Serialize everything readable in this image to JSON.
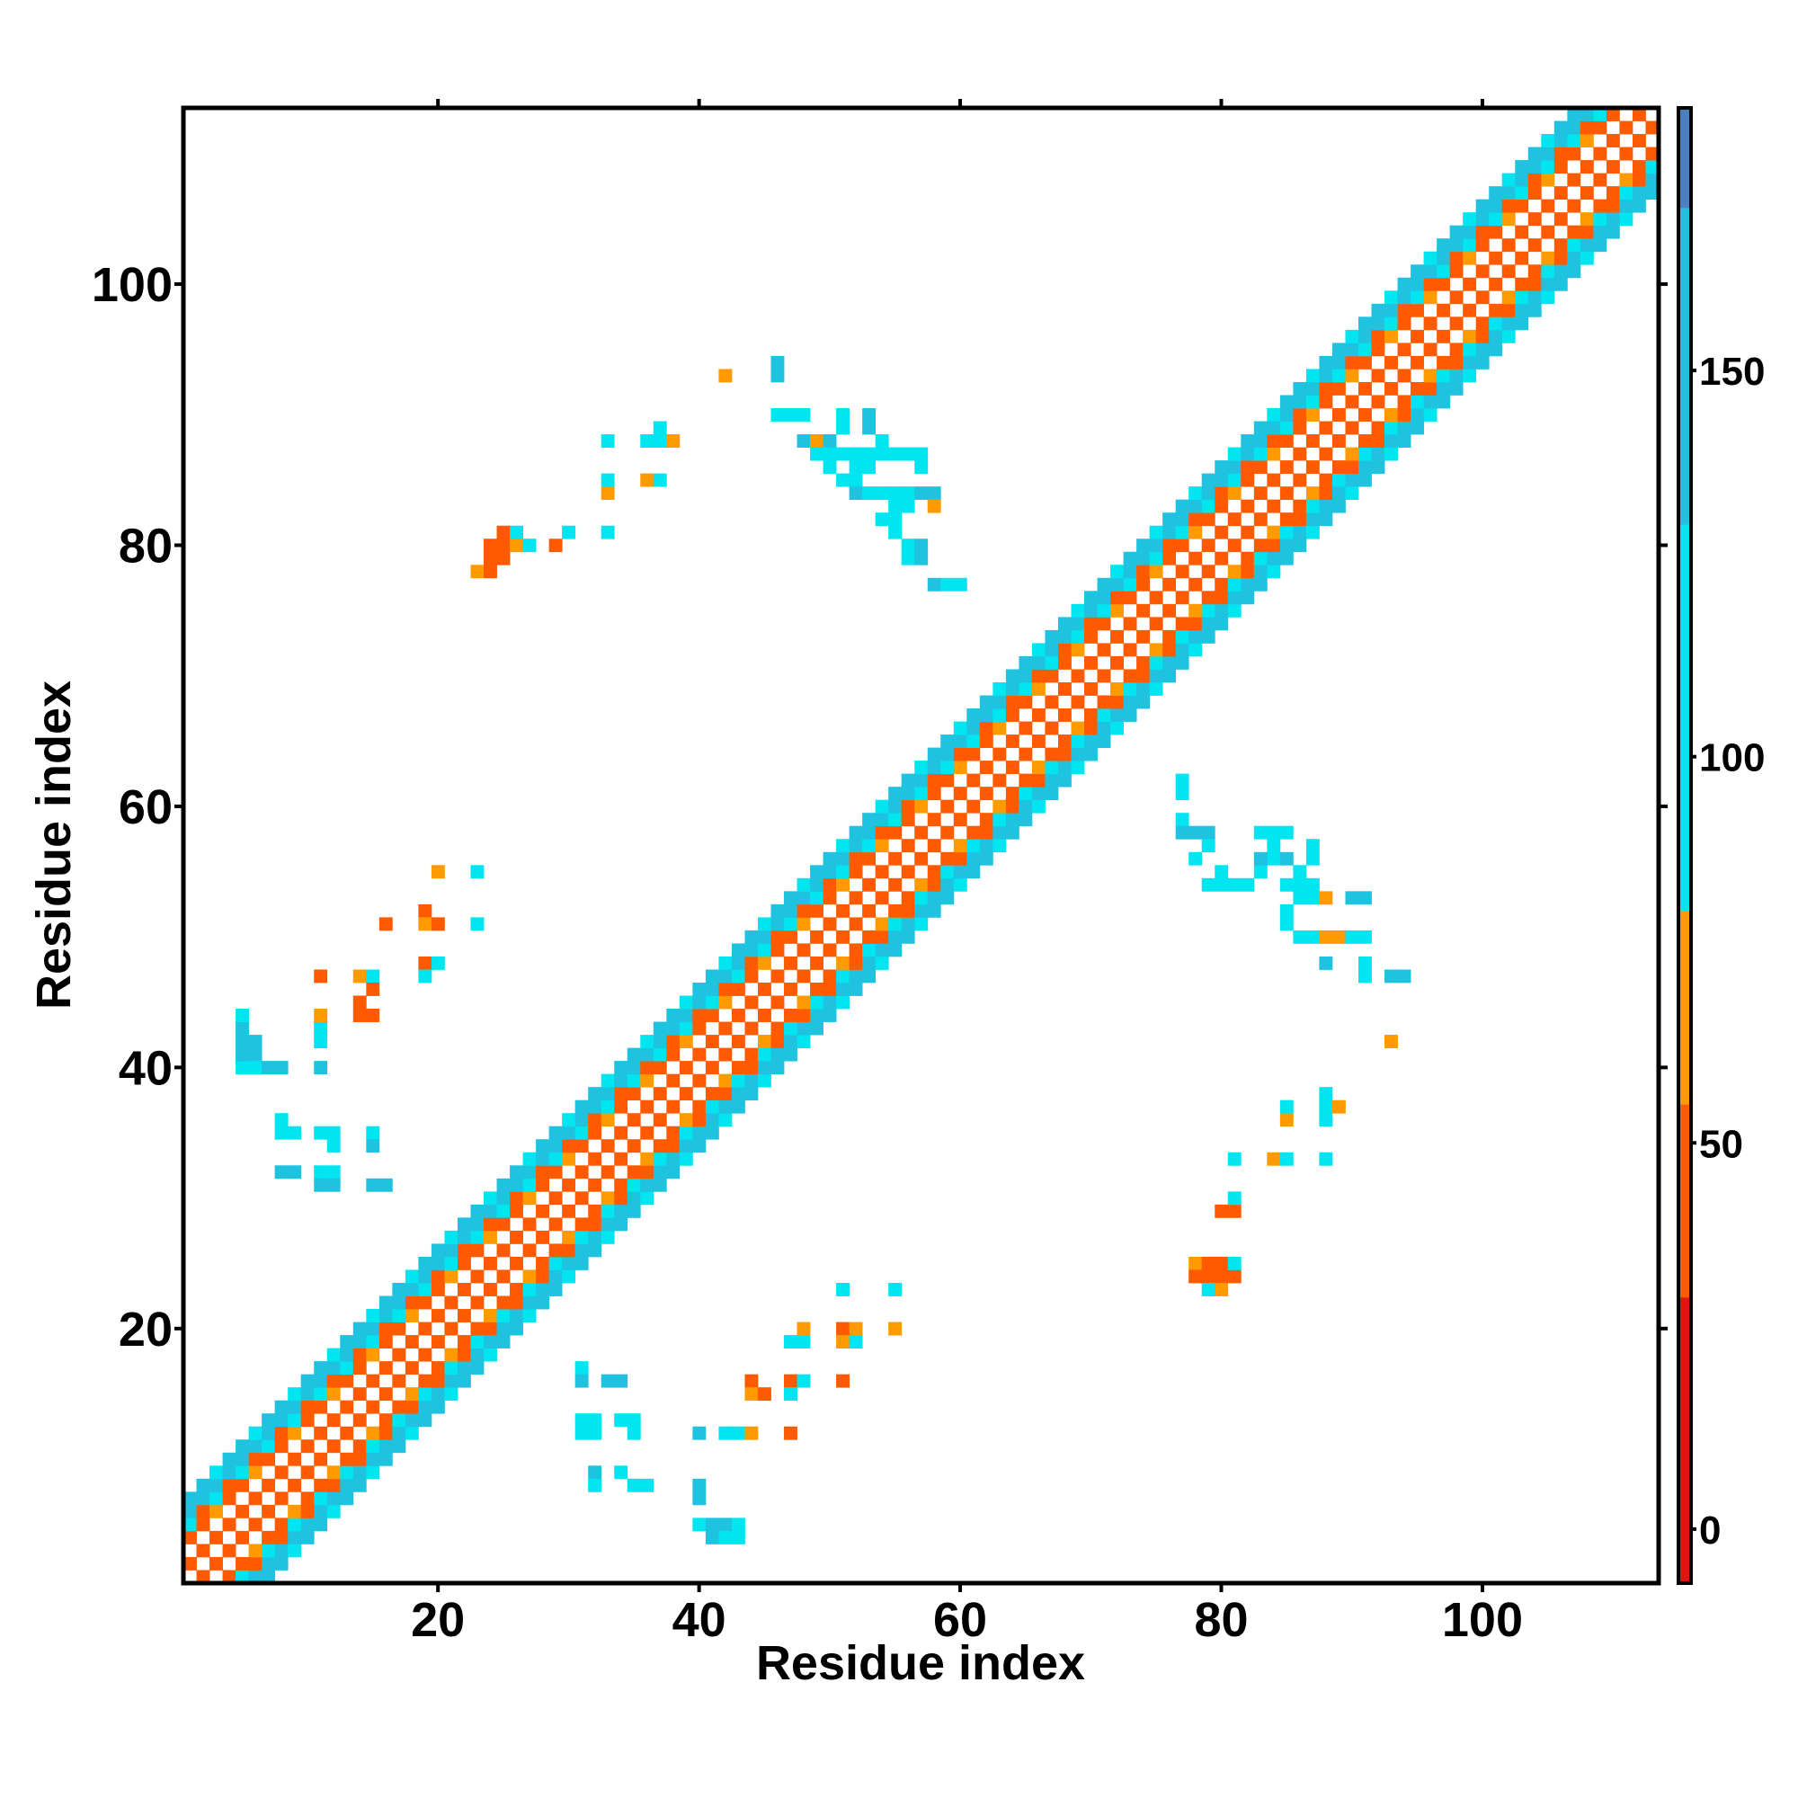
{
  "chart_data": {
    "type": "heatmap",
    "title": "",
    "xlabel": "Residue index",
    "ylabel": "Residue index",
    "xlim": [
      0.5,
      113.5
    ],
    "ylim": [
      0.5,
      113.5
    ],
    "x_ticks": [
      20,
      40,
      60,
      80,
      100
    ],
    "y_ticks": [
      20,
      40,
      60,
      80,
      100
    ],
    "colorbar": {
      "range": [
        -7,
        184
      ],
      "ticks": [
        0,
        50,
        100,
        150
      ],
      "bands": [
        {
          "from": -7,
          "to": 30,
          "color": "#e81010"
        },
        {
          "from": 30,
          "to": 55,
          "color": "#ff5a00"
        },
        {
          "from": 55,
          "to": 80,
          "color": "#ff9a00"
        },
        {
          "from": 80,
          "to": 130,
          "color": "#00e5f0"
        },
        {
          "from": 130,
          "to": 171,
          "color": "#1fc3e0"
        },
        {
          "from": 171,
          "to": 184,
          "color": "#4a7fc0"
        }
      ]
    },
    "diagonal_band": {
      "from": 1,
      "to": 113,
      "half_width": 6
    },
    "off_diagonal_cells": [
      [
        23,
        78,
        60
      ],
      [
        24,
        78,
        45
      ],
      [
        24,
        79,
        45
      ],
      [
        25,
        79,
        45
      ],
      [
        24,
        80,
        45
      ],
      [
        25,
        80,
        45
      ],
      [
        25,
        81,
        45
      ],
      [
        26,
        80,
        60
      ],
      [
        26,
        81,
        100
      ],
      [
        27,
        80,
        100
      ],
      [
        29,
        80,
        45
      ],
      [
        30,
        81,
        100
      ],
      [
        33,
        81,
        100
      ],
      [
        33,
        84,
        60
      ],
      [
        33,
        85,
        100
      ],
      [
        36,
        85,
        60
      ],
      [
        37,
        85,
        100
      ],
      [
        33,
        88,
        100
      ],
      [
        36,
        88,
        100
      ],
      [
        37,
        88,
        100
      ],
      [
        37,
        89,
        100
      ],
      [
        38,
        88,
        60
      ],
      [
        42,
        93,
        60
      ],
      [
        46,
        93,
        150
      ],
      [
        46,
        94,
        150
      ],
      [
        46,
        90,
        100
      ],
      [
        47,
        90,
        100
      ],
      [
        48,
        90,
        100
      ],
      [
        48,
        88,
        150
      ],
      [
        49,
        88,
        60
      ],
      [
        50,
        88,
        150
      ],
      [
        49,
        87,
        100
      ],
      [
        50,
        87,
        100
      ],
      [
        51,
        87,
        100
      ],
      [
        52,
        87,
        100
      ],
      [
        50,
        86,
        100
      ],
      [
        51,
        85,
        100
      ],
      [
        52,
        85,
        100
      ],
      [
        52,
        86,
        100
      ],
      [
        53,
        86,
        100
      ],
      [
        53,
        87,
        100
      ],
      [
        54,
        87,
        100
      ],
      [
        55,
        87,
        100
      ],
      [
        56,
        87,
        100
      ],
      [
        57,
        87,
        100
      ],
      [
        57,
        86,
        100
      ],
      [
        54,
        84,
        100
      ],
      [
        55,
        84,
        100
      ],
      [
        56,
        84,
        100
      ],
      [
        57,
        84,
        150
      ],
      [
        58,
        84,
        150
      ],
      [
        58,
        83,
        60
      ],
      [
        55,
        83,
        100
      ],
      [
        56,
        83,
        100
      ],
      [
        54,
        82,
        100
      ],
      [
        55,
        82,
        100
      ],
      [
        55,
        81,
        100
      ],
      [
        56,
        80,
        100
      ],
      [
        56,
        79,
        100
      ],
      [
        57,
        80,
        150
      ],
      [
        57,
        79,
        150
      ],
      [
        58,
        77,
        150
      ],
      [
        59,
        77,
        100
      ],
      [
        60,
        77,
        100
      ],
      [
        51,
        90,
        100
      ],
      [
        51,
        89,
        100
      ],
      [
        53,
        90,
        150
      ],
      [
        53,
        89,
        150
      ],
      [
        54,
        88,
        100
      ],
      [
        52,
        84,
        150
      ],
      [
        53,
        84,
        100
      ],
      [
        78,
        25,
        60
      ],
      [
        78,
        24,
        45
      ],
      [
        79,
        24,
        45
      ],
      [
        79,
        25,
        45
      ],
      [
        80,
        25,
        45
      ],
      [
        80,
        24,
        45
      ],
      [
        81,
        24,
        45
      ],
      [
        81,
        25,
        100
      ],
      [
        80,
        23,
        60
      ],
      [
        79,
        23,
        100
      ],
      [
        80,
        29,
        45
      ],
      [
        81,
        29,
        45
      ],
      [
        81,
        30,
        100
      ],
      [
        81,
        33,
        100
      ],
      [
        84,
        33,
        60
      ],
      [
        85,
        33,
        100
      ],
      [
        85,
        36,
        60
      ],
      [
        85,
        37,
        100
      ],
      [
        88,
        33,
        100
      ],
      [
        88,
        36,
        100
      ],
      [
        88,
        37,
        100
      ],
      [
        89,
        37,
        60
      ],
      [
        88,
        38,
        100
      ],
      [
        93,
        42,
        60
      ],
      [
        77,
        62,
        100
      ],
      [
        77,
        61,
        100
      ],
      [
        77,
        59,
        100
      ],
      [
        77,
        58,
        150
      ],
      [
        78,
        58,
        150
      ],
      [
        79,
        58,
        150
      ],
      [
        78,
        56,
        100
      ],
      [
        79,
        57,
        100
      ],
      [
        83,
        58,
        100
      ],
      [
        84,
        58,
        100
      ],
      [
        85,
        58,
        100
      ],
      [
        84,
        57,
        100
      ],
      [
        84,
        56,
        100
      ],
      [
        83,
        55,
        100
      ],
      [
        82,
        54,
        100
      ],
      [
        81,
        54,
        100
      ],
      [
        80,
        54,
        100
      ],
      [
        79,
        54,
        100
      ],
      [
        80,
        55,
        100
      ],
      [
        85,
        54,
        100
      ],
      [
        86,
        54,
        100
      ],
      [
        86,
        53,
        100
      ],
      [
        87,
        54,
        100
      ],
      [
        87,
        53,
        100
      ],
      [
        87,
        57,
        100
      ],
      [
        87,
        56,
        100
      ],
      [
        88,
        53,
        60
      ],
      [
        90,
        53,
        150
      ],
      [
        91,
        53,
        150
      ],
      [
        85,
        52,
        100
      ],
      [
        85,
        51,
        100
      ],
      [
        86,
        50,
        100
      ],
      [
        87,
        50,
        100
      ],
      [
        88,
        50,
        60
      ],
      [
        89,
        50,
        60
      ],
      [
        90,
        50,
        100
      ],
      [
        91,
        50,
        100
      ],
      [
        88,
        48,
        150
      ],
      [
        91,
        48,
        100
      ],
      [
        91,
        47,
        100
      ],
      [
        93,
        47,
        150
      ],
      [
        94,
        47,
        150
      ],
      [
        85,
        56,
        150
      ],
      [
        83,
        56,
        150
      ],
      [
        86,
        55,
        100
      ],
      [
        5,
        40,
        100
      ],
      [
        5,
        41,
        150
      ],
      [
        6,
        41,
        150
      ],
      [
        5,
        42,
        150
      ],
      [
        6,
        42,
        150
      ],
      [
        5,
        43,
        150
      ],
      [
        5,
        44,
        100
      ],
      [
        6,
        40,
        100
      ],
      [
        7,
        40,
        150
      ],
      [
        8,
        40,
        150
      ],
      [
        11,
        40,
        150
      ],
      [
        8,
        36,
        100
      ],
      [
        8,
        35,
        100
      ],
      [
        9,
        35,
        100
      ],
      [
        11,
        35,
        100
      ],
      [
        12,
        34,
        100
      ],
      [
        12,
        35,
        100
      ],
      [
        15,
        35,
        100
      ],
      [
        15,
        34,
        150
      ],
      [
        8,
        32,
        150
      ],
      [
        9,
        32,
        150
      ],
      [
        11,
        32,
        100
      ],
      [
        12,
        32,
        100
      ],
      [
        11,
        31,
        150
      ],
      [
        12,
        31,
        150
      ],
      [
        15,
        31,
        150
      ],
      [
        16,
        31,
        150
      ],
      [
        11,
        42,
        100
      ],
      [
        11,
        43,
        100
      ],
      [
        11,
        44,
        60
      ],
      [
        11,
        47,
        45
      ],
      [
        14,
        45,
        30
      ],
      [
        14,
        44,
        45
      ],
      [
        15,
        44,
        45
      ],
      [
        14,
        47,
        60
      ],
      [
        15,
        47,
        100
      ],
      [
        15,
        46,
        30
      ],
      [
        16,
        51,
        45
      ],
      [
        19,
        52,
        45
      ],
      [
        19,
        51,
        60
      ],
      [
        20,
        51,
        45
      ],
      [
        19,
        48,
        45
      ],
      [
        20,
        48,
        100
      ],
      [
        19,
        47,
        100
      ],
      [
        20,
        55,
        60
      ],
      [
        23,
        55,
        100
      ],
      [
        23,
        51,
        100
      ],
      [
        31,
        17,
        100
      ],
      [
        31,
        16,
        150
      ],
      [
        33,
        16,
        150
      ],
      [
        34,
        16,
        150
      ],
      [
        31,
        13,
        100
      ],
      [
        32,
        13,
        100
      ],
      [
        31,
        12,
        100
      ],
      [
        32,
        12,
        100
      ],
      [
        34,
        13,
        100
      ],
      [
        35,
        13,
        100
      ],
      [
        35,
        12,
        100
      ],
      [
        32,
        9,
        150
      ],
      [
        32,
        8,
        100
      ],
      [
        34,
        9,
        100
      ],
      [
        35,
        8,
        100
      ],
      [
        36,
        8,
        100
      ],
      [
        40,
        12,
        150
      ],
      [
        40,
        8,
        150
      ],
      [
        40,
        7,
        150
      ],
      [
        40,
        5,
        100
      ],
      [
        41,
        5,
        150
      ],
      [
        41,
        4,
        150
      ],
      [
        42,
        5,
        150
      ],
      [
        42,
        4,
        100
      ],
      [
        43,
        5,
        100
      ],
      [
        43,
        4,
        100
      ],
      [
        42,
        12,
        100
      ],
      [
        43,
        12,
        100
      ],
      [
        44,
        12,
        60
      ],
      [
        47,
        12,
        45
      ],
      [
        44,
        16,
        45
      ],
      [
        44,
        15,
        60
      ],
      [
        45,
        15,
        30
      ],
      [
        47,
        16,
        45
      ],
      [
        47,
        15,
        100
      ],
      [
        48,
        16,
        100
      ],
      [
        48,
        19,
        100
      ],
      [
        47,
        19,
        100
      ],
      [
        48,
        20,
        60
      ],
      [
        51,
        20,
        45
      ],
      [
        52,
        20,
        60
      ],
      [
        51,
        19,
        60
      ],
      [
        52,
        19,
        100
      ],
      [
        51,
        16,
        45
      ],
      [
        51,
        23,
        100
      ],
      [
        55,
        23,
        100
      ],
      [
        55,
        20,
        60
      ]
    ]
  }
}
